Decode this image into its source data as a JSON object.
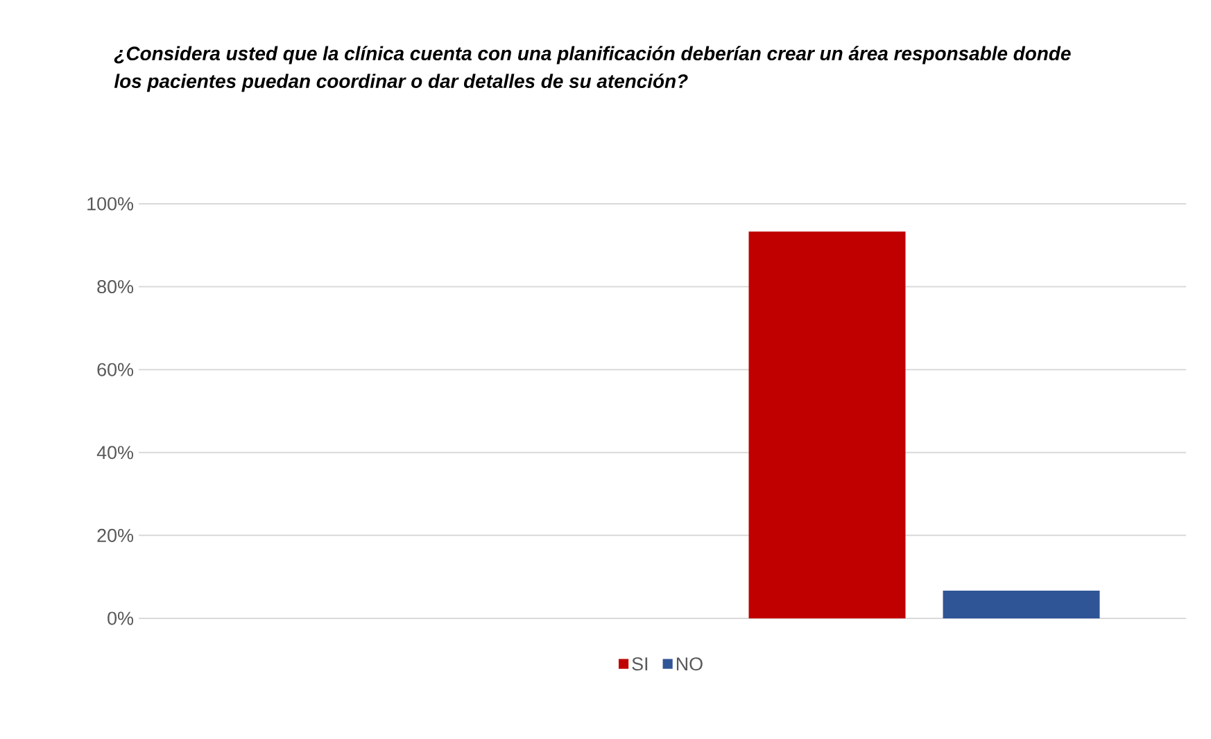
{
  "chart_data": {
    "type": "bar",
    "title": "¿Considera usted que la clínica cuenta con una planificación deberían crear un área responsable donde los pacientes puedan coordinar o dar detalles de su atención?",
    "categories": [
      null,
      null
    ],
    "series": [
      {
        "name": "SI",
        "color": "#c00000",
        "values": [
          null,
          93.3
        ]
      },
      {
        "name": "NO",
        "color": "#2f5597",
        "values": [
          null,
          6.7
        ]
      }
    ],
    "ylim": [
      0,
      100
    ],
    "yticks": [
      {
        "value": 0,
        "label": "0%"
      },
      {
        "value": 20,
        "label": "20%"
      },
      {
        "value": 40,
        "label": "40%"
      },
      {
        "value": 60,
        "label": "60%"
      },
      {
        "value": 80,
        "label": "80%"
      },
      {
        "value": 100,
        "label": "100%"
      }
    ],
    "grid": "y",
    "legend": "bottom"
  }
}
